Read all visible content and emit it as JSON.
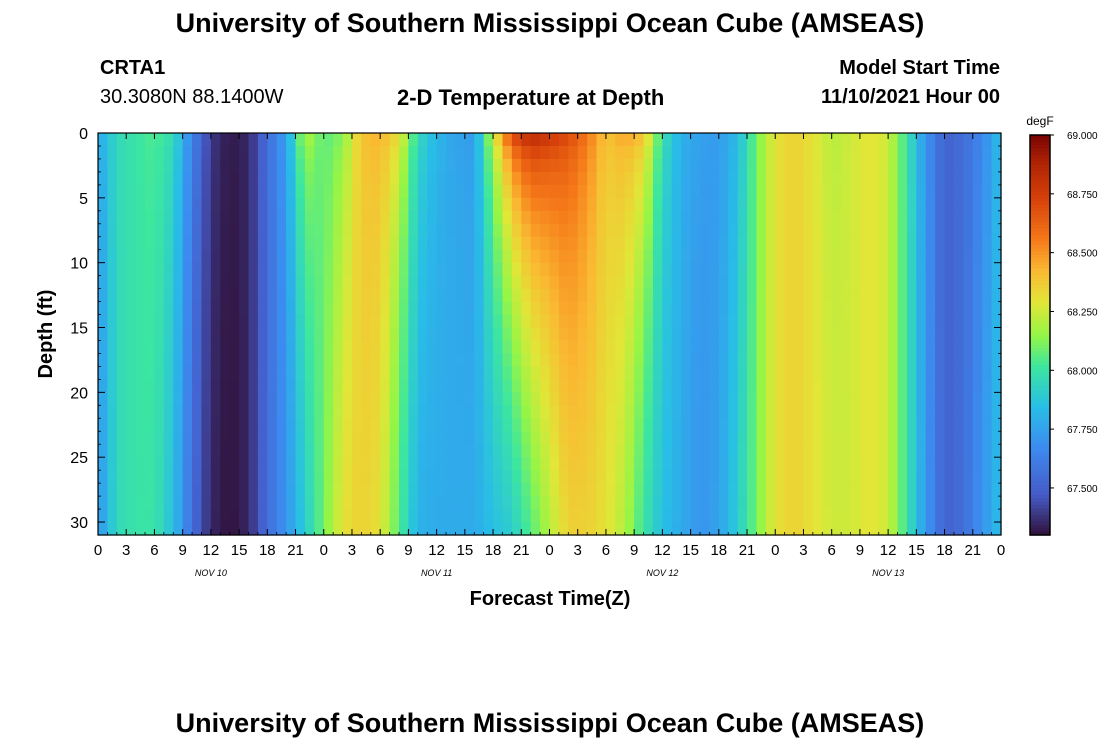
{
  "page_title": "University of Southern Mississippi Ocean Cube (AMSEAS)",
  "page_title_repeat": "University of Southern Mississippi Ocean Cube (AMSEAS)",
  "station": {
    "name": "CRTA1",
    "coords": "30.3080N  88.1400W"
  },
  "plot_title": "2-D Temperature at Depth",
  "model_start": {
    "label": "Model Start Time",
    "value": "11/10/2021 Hour 00"
  },
  "chart_data": {
    "type": "heatmap",
    "title": "2-D Temperature at Depth",
    "xlabel": "Forecast Time(Z)",
    "ylabel": "Depth (ft)",
    "x_ticks": [
      "0",
      "3",
      "6",
      "9",
      "12",
      "15",
      "18",
      "21",
      "0",
      "3",
      "6",
      "9",
      "12",
      "15",
      "18",
      "21",
      "0",
      "3",
      "6",
      "9",
      "12",
      "15",
      "18",
      "21",
      "0",
      "3",
      "6",
      "9",
      "12",
      "15",
      "18",
      "21",
      "0"
    ],
    "x_hours_range": [
      0,
      96
    ],
    "day_labels": [
      {
        "label": "NOV 10",
        "hour": 12
      },
      {
        "label": "NOV 11",
        "hour": 36
      },
      {
        "label": "NOV 12",
        "hour": 60
      },
      {
        "label": "NOV 13",
        "hour": 84
      }
    ],
    "y_ticks": [
      0,
      5,
      10,
      15,
      20,
      25,
      30
    ],
    "ylim": [
      0,
      31
    ],
    "y_inverted": true,
    "colorbar": {
      "unit": "degF",
      "range": [
        67.3,
        69.0
      ],
      "ticks": [
        "69.000",
        "68.750",
        "68.500",
        "68.250",
        "68.000",
        "67.750",
        "67.500"
      ]
    },
    "surface_profile_hours": [
      0,
      2,
      4,
      6,
      8,
      10,
      12,
      14,
      16,
      18,
      20,
      22,
      24,
      26,
      28,
      30,
      32,
      34,
      36,
      38,
      40,
      42,
      44,
      46,
      48,
      50,
      52,
      54,
      56,
      58,
      60,
      62,
      64,
      66,
      68,
      70,
      72,
      74,
      76,
      78,
      80,
      82,
      84,
      86,
      88,
      90,
      92,
      94,
      96
    ],
    "surface_temps_degF": [
      67.78,
      67.95,
      68.0,
      68.05,
      67.98,
      67.65,
      67.4,
      67.32,
      67.35,
      67.55,
      67.75,
      68.25,
      68.05,
      68.1,
      68.4,
      68.45,
      68.35,
      67.98,
      67.82,
      67.75,
      67.72,
      68.3,
      68.8,
      68.95,
      68.85,
      68.75,
      68.6,
      68.4,
      68.5,
      68.45,
      68.0,
      67.8,
      67.75,
      67.72,
      67.82,
      68.1,
      68.3,
      68.35,
      68.3,
      68.2,
      68.25,
      68.3,
      68.25,
      68.0,
      67.7,
      67.5,
      67.55,
      67.65,
      67.85
    ],
    "bottom_temps_degF": [
      67.7,
      67.95,
      68.0,
      68.0,
      67.85,
      67.55,
      67.35,
      67.3,
      67.35,
      67.55,
      67.7,
      67.9,
      68.1,
      68.3,
      68.35,
      68.3,
      68.05,
      67.8,
      67.78,
      67.78,
      67.78,
      67.85,
      67.9,
      68.05,
      68.2,
      68.35,
      68.35,
      68.3,
      68.2,
      68.0,
      67.85,
      67.78,
      67.7,
      67.75,
      67.9,
      68.1,
      68.3,
      68.35,
      68.3,
      68.25,
      68.25,
      68.3,
      68.25,
      68.0,
      67.72,
      67.5,
      67.55,
      67.7,
      67.85
    ]
  }
}
